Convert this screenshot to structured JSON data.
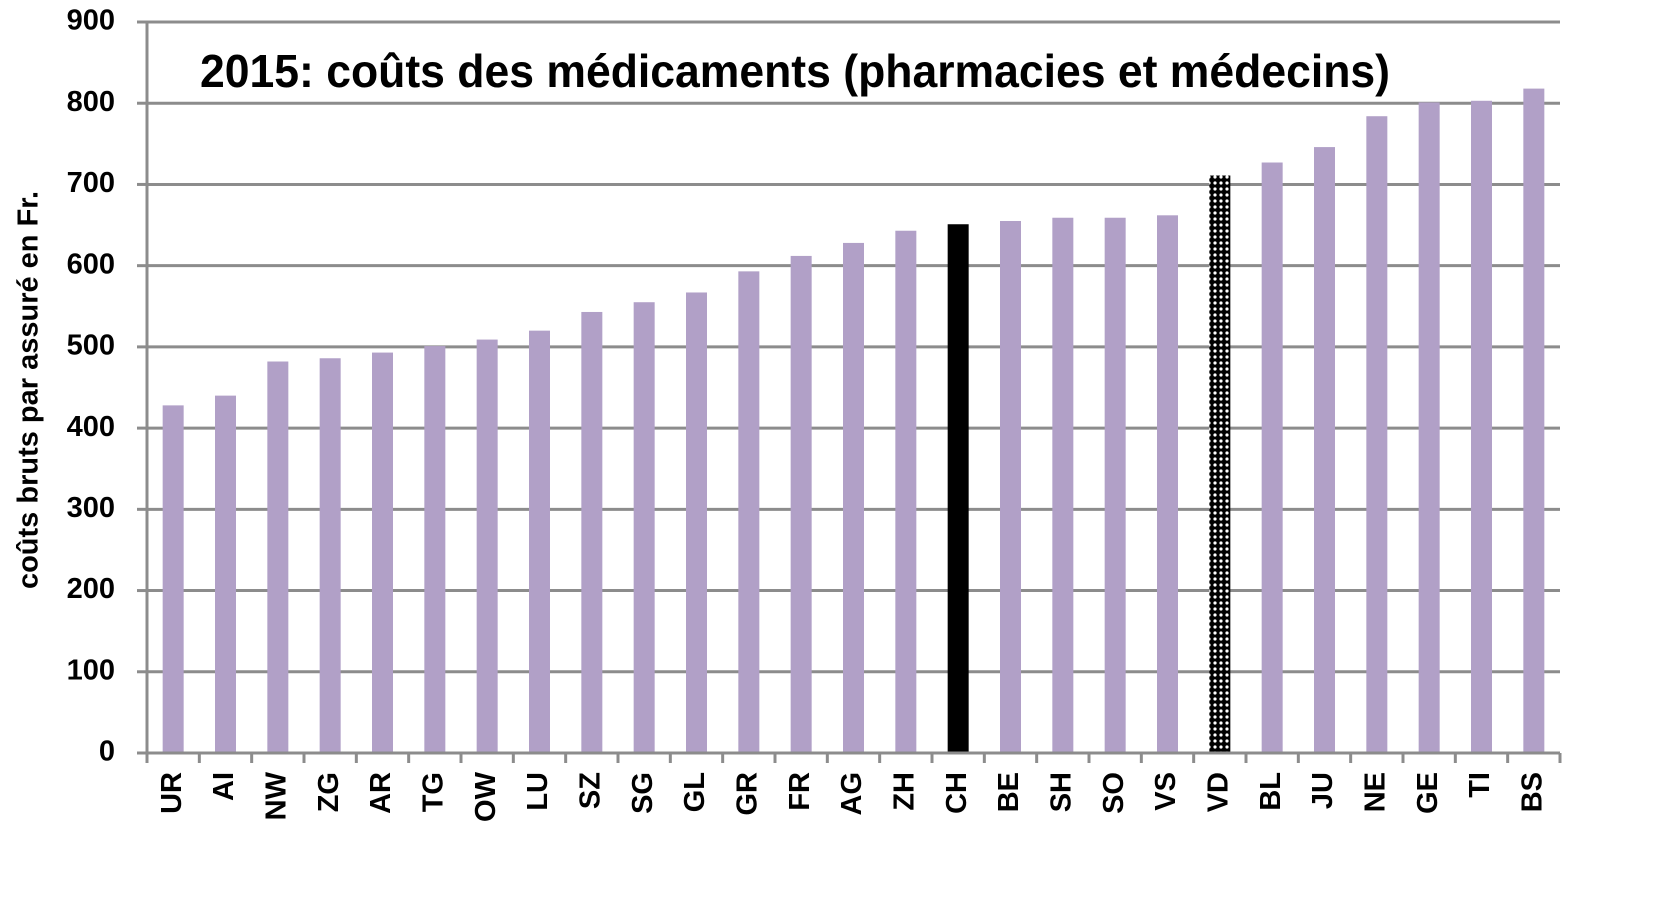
{
  "chart_data": {
    "type": "bar",
    "title": "2015: coûts des médicaments (pharmacies et médecins)",
    "y_label": "coûts bruts par assuré  en Fr.",
    "categories": [
      "UR",
      "AI",
      "NW",
      "ZG",
      "AR",
      "TG",
      "OW",
      "LU",
      "SZ",
      "SG",
      "GL",
      "GR",
      "FR",
      "AG",
      "ZH",
      "CH",
      "BE",
      "SH",
      "SO",
      "VS",
      "VD",
      "BL",
      "JU",
      "NE",
      "GE",
      "TI",
      "BS"
    ],
    "values": [
      428,
      440,
      482,
      486,
      493,
      501,
      509,
      520,
      543,
      555,
      567,
      593,
      612,
      628,
      643,
      651,
      655,
      659,
      659,
      662,
      711,
      727,
      746,
      784,
      801,
      803,
      818
    ],
    "colors": [
      "#b1a0c7",
      "#b1a0c7",
      "#b1a0c7",
      "#b1a0c7",
      "#b1a0c7",
      "#b1a0c7",
      "#b1a0c7",
      "#b1a0c7",
      "#b1a0c7",
      "#b1a0c7",
      "#b1a0c7",
      "#b1a0c7",
      "#b1a0c7",
      "#b1a0c7",
      "#b1a0c7",
      "#000000",
      "#b1a0c7",
      "#b1a0c7",
      "#b1a0c7",
      "#b1a0c7",
      "#000000",
      "#b1a0c7",
      "#b1a0c7",
      "#b1a0c7",
      "#b1a0c7",
      "#b1a0c7",
      "#b1a0c7"
    ],
    "bar_patterns": [
      "solid",
      "solid",
      "solid",
      "solid",
      "solid",
      "solid",
      "solid",
      "solid",
      "solid",
      "solid",
      "solid",
      "solid",
      "solid",
      "solid",
      "solid",
      "solid",
      "solid",
      "solid",
      "solid",
      "solid",
      "dots",
      "solid",
      "solid",
      "solid",
      "solid",
      "solid",
      "solid"
    ],
    "ylim": [
      0,
      900
    ],
    "yticks": [
      0,
      100,
      200,
      300,
      400,
      500,
      600,
      700,
      800,
      900
    ],
    "grid": true
  }
}
